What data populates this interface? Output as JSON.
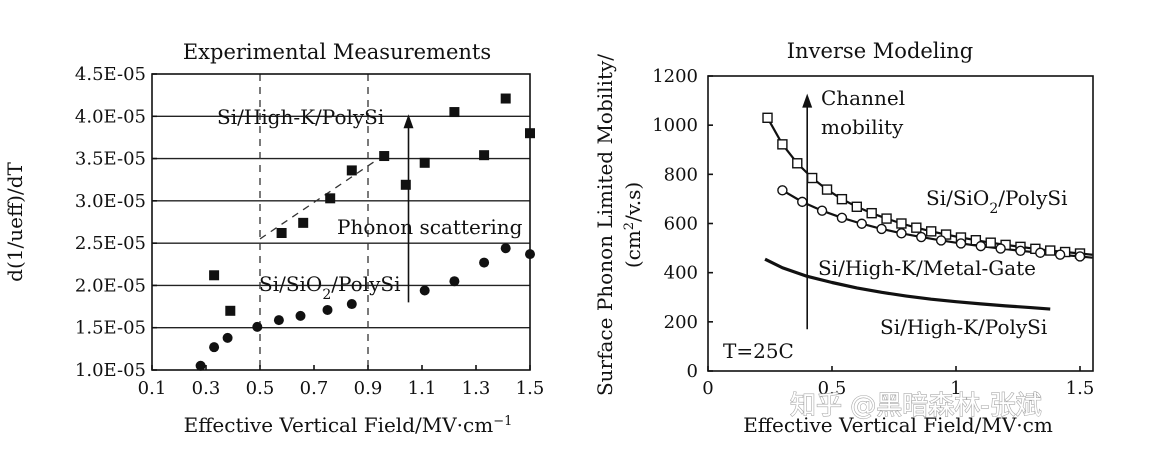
{
  "chart_data": [
    {
      "type": "scatter",
      "title": "Experimental Measurements",
      "xlabel": "Effective Vertical Field/MV·cm",
      "xlabel_sup": "−1",
      "ylabel": "d(1/ueff)/dT",
      "xlim": [
        0.1,
        1.5
      ],
      "ylim": [
        1e-05,
        4.5e-05
      ],
      "x_ticks": [
        "0.1",
        "0.3",
        "0.5",
        "0.7",
        "0.9",
        "1.1",
        "1.3",
        "1.5"
      ],
      "y_ticks": [
        "1.0E-05",
        "1.5E-05",
        "2.0E-05",
        "2.5E-05",
        "3.0E-05",
        "3.5E-05",
        "4.0E-05",
        "4.5E-05"
      ],
      "series": [
        {
          "name": "Si/High-K/PolySi",
          "marker": "square",
          "x": [
            0.33,
            0.39,
            0.58,
            0.66,
            0.76,
            0.84,
            0.96,
            1.04,
            1.11,
            1.22,
            1.33,
            1.41,
            1.5
          ],
          "y": [
            2.12e-05,
            1.7e-05,
            2.62e-05,
            2.74e-05,
            3.03e-05,
            3.36e-05,
            3.53e-05,
            3.19e-05,
            3.45e-05,
            4.05e-05,
            3.54e-05,
            4.21e-05,
            3.8e-05
          ]
        },
        {
          "name": "Si/SiO2/PolySi",
          "marker": "circle",
          "x": [
            0.28,
            0.33,
            0.38,
            0.49,
            0.57,
            0.65,
            0.75,
            0.84,
            1.11,
            1.22,
            1.33,
            1.41,
            1.5
          ],
          "y": [
            1.05e-05,
            1.27e-05,
            1.38e-05,
            1.51e-05,
            1.59e-05,
            1.64e-05,
            1.71e-05,
            1.78e-05,
            1.94e-05,
            2.05e-05,
            2.27e-05,
            2.44e-05,
            2.37e-05
          ]
        }
      ],
      "hlines": [
        1.5e-05,
        2e-05,
        2.5e-05,
        3e-05,
        3.5e-05,
        4e-05
      ],
      "vlines_dashed": [
        0.5,
        0.9
      ],
      "dashed_trend": {
        "x": [
          0.5,
          0.94
        ],
        "y": [
          2.55e-05,
          3.5e-05
        ]
      },
      "arrow": {
        "x": 1.05,
        "y_from": 1.8e-05,
        "y_to": 4e-05
      },
      "annotations": {
        "high_k": "Si/High-K/PolySi",
        "sio2_pre": "Si/SiO",
        "sio2_sub": "2",
        "sio2_post": "/PolySi",
        "phonon": "Phonon scattering"
      }
    },
    {
      "type": "line",
      "title": "Inverse Modeling",
      "xlabel": "Effective Vertical Field/MV·cm",
      "ylabel_line1": "Surface Phonon Limited Mobility/",
      "ylabel_line2_pre": "(cm",
      "ylabel_line2_sup": "2",
      "ylabel_line2_post": "/v.s)",
      "xlim": [
        0,
        1.5
      ],
      "ylim": [
        0,
        1200
      ],
      "x_ticks": [
        "0",
        "0.5",
        "1",
        "1.5"
      ],
      "y_ticks": [
        "0",
        "200",
        "400",
        "600",
        "800",
        "1000",
        "1200"
      ],
      "series": [
        {
          "name": "Si/SiO2/PolySi",
          "marker": "square",
          "x": [
            0.24,
            0.3,
            0.36,
            0.42,
            0.48,
            0.54,
            0.6,
            0.66,
            0.72,
            0.78,
            0.84,
            0.9,
            0.96,
            1.02,
            1.08,
            1.14,
            1.2,
            1.26,
            1.32,
            1.38,
            1.44,
            1.5,
            1.55
          ],
          "y": [
            1030,
            922,
            845,
            785,
            738,
            699,
            668,
            642,
            620,
            600,
            583,
            568,
            555,
            543,
            532,
            522,
            513,
            505,
            497,
            490,
            484,
            478,
            473
          ],
          "marker_x": [
            0.24,
            0.3,
            0.36,
            0.42,
            0.48,
            0.54,
            0.6,
            0.66,
            0.72,
            0.78,
            0.84,
            0.9,
            0.96,
            1.02,
            1.08,
            1.14,
            1.2,
            1.26,
            1.32,
            1.38,
            1.44,
            1.5
          ]
        },
        {
          "name": "Si/High-K/Metal-Gate",
          "marker": "circle",
          "x": [
            0.3,
            0.38,
            0.46,
            0.54,
            0.62,
            0.7,
            0.78,
            0.86,
            0.94,
            1.02,
            1.1,
            1.18,
            1.26,
            1.34,
            1.42,
            1.5,
            1.55
          ],
          "y": [
            735,
            688,
            652,
            623,
            599,
            578,
            560,
            545,
            531,
            519,
            508,
            498,
            489,
            481,
            473,
            466,
            461
          ],
          "marker_x": [
            0.3,
            0.38,
            0.46,
            0.54,
            0.62,
            0.7,
            0.78,
            0.86,
            0.94,
            1.02,
            1.1,
            1.18,
            1.26,
            1.34,
            1.42,
            1.5
          ]
        },
        {
          "name": "Si/High-K/PolySi",
          "marker": "none",
          "x": [
            0.23,
            0.3,
            0.4,
            0.5,
            0.6,
            0.7,
            0.8,
            0.9,
            1.0,
            1.1,
            1.2,
            1.3,
            1.38
          ],
          "y": [
            455,
            420,
            385,
            360,
            338,
            320,
            305,
            292,
            282,
            273,
            265,
            258,
            252
          ]
        }
      ],
      "arrow": {
        "x": 0.4,
        "y_from": 170,
        "y_to": 1120
      },
      "annotations": {
        "channel_line1": "Channel",
        "channel_line2": "mobility",
        "sio2_pre": "Si/SiO",
        "sio2_sub": "2",
        "sio2_post": "/PolySi",
        "metal_gate": "Si/High-K/Metal-Gate",
        "high_k_poly": "Si/High-K/PolySi",
        "temp": "T=25C"
      }
    }
  ],
  "watermark": "知乎 @黑暗森林-张斌",
  "colors": {
    "ink": "#111111",
    "background": "#ffffff"
  }
}
